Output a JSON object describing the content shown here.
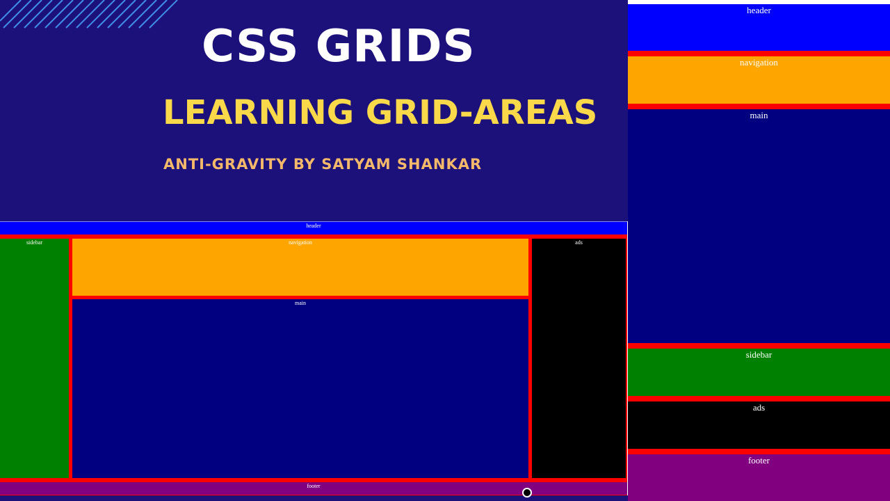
{
  "header": {
    "title": "CSS GRIDS",
    "subtitle": "LEARNING GRID-AREAS",
    "author": "ANTI-GRAVITY BY SATYAM SHANKAR"
  },
  "desktop_layout": {
    "header": "header",
    "sidebar": "sidebar",
    "navigation": "navigation",
    "ads": "ads",
    "main": "main",
    "footer": "footer"
  },
  "mobile_layout": {
    "header": "header",
    "navigation": "navigation",
    "main": "main",
    "sidebar": "sidebar",
    "ads": "ads",
    "footer": "footer"
  }
}
